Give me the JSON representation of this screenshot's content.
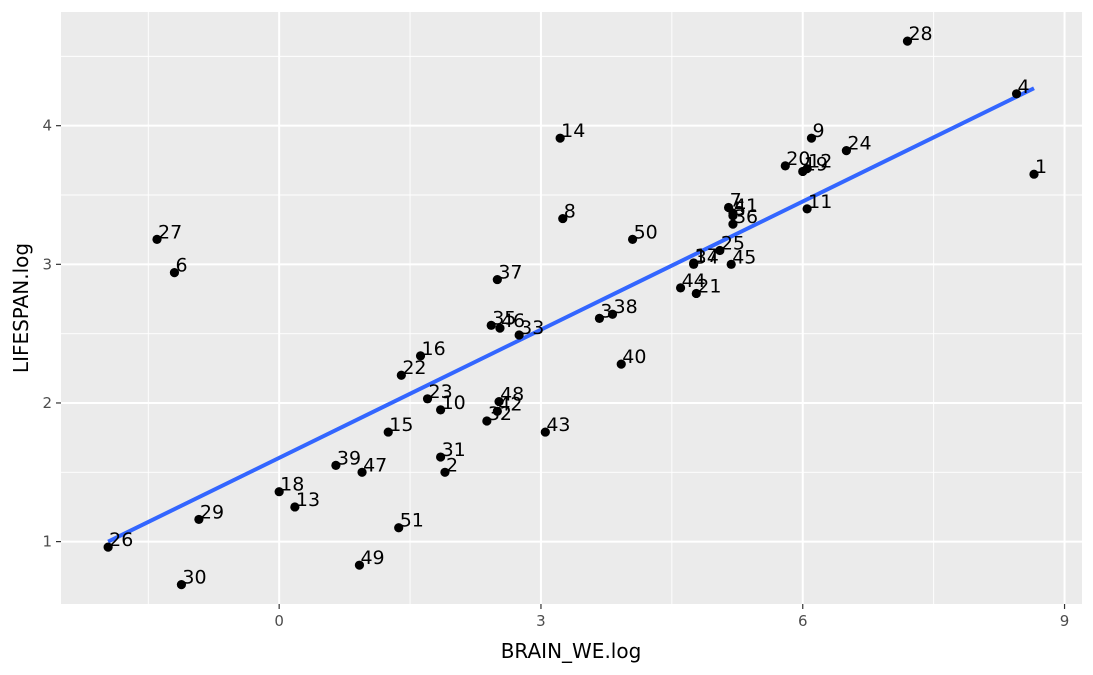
{
  "chart_data": {
    "type": "scatter",
    "title": "",
    "xlabel": "BRAIN_WE.log",
    "ylabel": "LIFESPAN.log",
    "xlim": [
      -2.5,
      9.2
    ],
    "ylim": [
      0.55,
      4.82
    ],
    "x_ticks": [
      0,
      3,
      6,
      9
    ],
    "x_tick_labels": [
      "0",
      "3",
      "6",
      "9"
    ],
    "y_ticks": [
      1,
      2,
      3,
      4
    ],
    "y_tick_labels": [
      "1",
      "2",
      "3",
      "4"
    ],
    "grid": true,
    "legend": "none",
    "colors": {
      "panel": "#ebebeb",
      "grid": "#ffffff",
      "point": "#000000",
      "fit_line": "#3366ff"
    },
    "fit_line": {
      "type": "linear",
      "x": [
        -1.96,
        8.65
      ],
      "y": [
        1.0,
        4.27
      ]
    },
    "points": [
      {
        "label": "1",
        "x": 8.65,
        "y": 3.65
      },
      {
        "label": "2",
        "x": 1.9,
        "y": 1.5
      },
      {
        "label": "4",
        "x": 8.45,
        "y": 4.23
      },
      {
        "label": "6",
        "x": -1.2,
        "y": 2.94
      },
      {
        "label": "7",
        "x": 5.15,
        "y": 3.41
      },
      {
        "label": "8",
        "x": 3.25,
        "y": 3.33
      },
      {
        "label": "9",
        "x": 6.1,
        "y": 3.91
      },
      {
        "label": "10",
        "x": 1.85,
        "y": 1.95
      },
      {
        "label": "11",
        "x": 6.05,
        "y": 3.4
      },
      {
        "label": "12",
        "x": 6.05,
        "y": 3.69
      },
      {
        "label": "13",
        "x": 0.18,
        "y": 1.25
      },
      {
        "label": "14",
        "x": 3.22,
        "y": 3.91
      },
      {
        "label": "15",
        "x": 1.25,
        "y": 1.79
      },
      {
        "label": "16",
        "x": 1.62,
        "y": 2.34
      },
      {
        "label": "18",
        "x": 0.0,
        "y": 1.36
      },
      {
        "label": "20",
        "x": 5.8,
        "y": 3.71
      },
      {
        "label": "21",
        "x": 4.78,
        "y": 2.79
      },
      {
        "label": "22",
        "x": 1.4,
        "y": 2.2
      },
      {
        "label": "23",
        "x": 1.7,
        "y": 2.03
      },
      {
        "label": "24",
        "x": 6.5,
        "y": 3.82
      },
      {
        "label": "25",
        "x": 5.05,
        "y": 3.1
      },
      {
        "label": "26",
        "x": -1.96,
        "y": 0.96
      },
      {
        "label": "27",
        "x": -1.4,
        "y": 3.18
      },
      {
        "label": "28",
        "x": 7.2,
        "y": 4.61
      },
      {
        "label": "29",
        "x": -0.92,
        "y": 1.16
      },
      {
        "label": "30",
        "x": -1.12,
        "y": 0.69
      },
      {
        "label": "31",
        "x": 1.85,
        "y": 1.61
      },
      {
        "label": "32",
        "x": 2.38,
        "y": 1.87
      },
      {
        "label": "33",
        "x": 2.75,
        "y": 2.49
      },
      {
        "label": "34",
        "x": 4.75,
        "y": 3.0
      },
      {
        "label": "35",
        "x": 2.43,
        "y": 2.56
      },
      {
        "label": "36",
        "x": 5.2,
        "y": 3.29
      },
      {
        "label": "37",
        "x": 2.5,
        "y": 2.89
      },
      {
        "label": "38",
        "x": 3.82,
        "y": 2.64
      },
      {
        "label": "39",
        "x": 0.65,
        "y": 1.55
      },
      {
        "label": "40",
        "x": 3.92,
        "y": 2.28
      },
      {
        "label": "41",
        "x": 5.2,
        "y": 3.37
      },
      {
        "label": "42",
        "x": 2.5,
        "y": 1.94
      },
      {
        "label": "43",
        "x": 3.05,
        "y": 1.79
      },
      {
        "label": "44",
        "x": 4.6,
        "y": 2.83
      },
      {
        "label": "45",
        "x": 5.18,
        "y": 3.0
      },
      {
        "label": "46",
        "x": 2.53,
        "y": 2.54
      },
      {
        "label": "47",
        "x": 0.95,
        "y": 1.5
      },
      {
        "label": "48",
        "x": 2.52,
        "y": 2.01
      },
      {
        "label": "49",
        "x": 0.92,
        "y": 0.83
      },
      {
        "label": "50",
        "x": 4.05,
        "y": 3.18
      },
      {
        "label": "51",
        "x": 1.37,
        "y": 1.1
      },
      {
        "label": "3",
        "x": 3.67,
        "y": 2.61
      },
      {
        "label": "17",
        "x": 4.75,
        "y": 3.01
      },
      {
        "label": "19",
        "x": 6.0,
        "y": 3.67
      },
      {
        "label": "5",
        "x": 5.2,
        "y": 3.35
      }
    ]
  }
}
